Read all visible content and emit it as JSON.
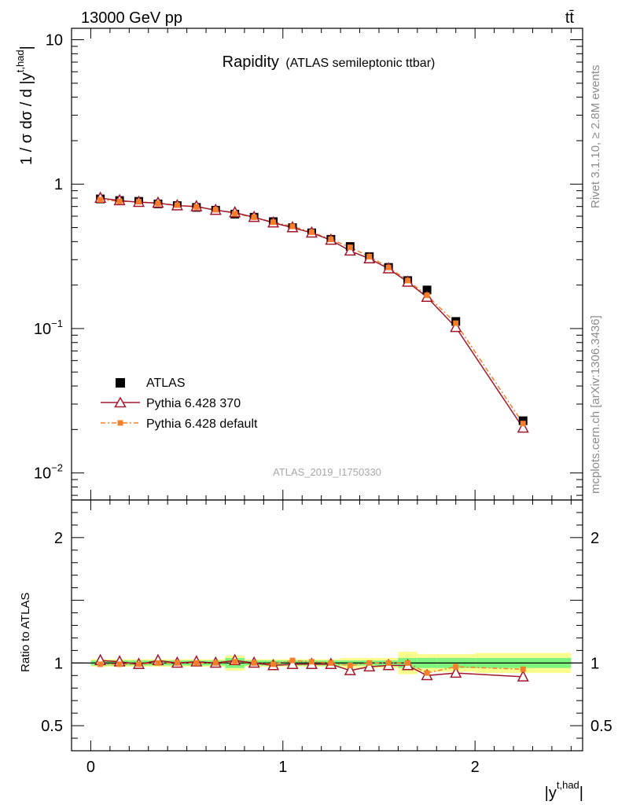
{
  "header": {
    "energy_label": "13000 GeV pp",
    "process_label": "tt̄"
  },
  "side_labels": {
    "rivet": "Rivet 3.1.10, ≥ 2.8M events",
    "mcplots": "mcplots.cern.ch [arXiv:1306.3436]"
  },
  "colors": {
    "atlas": "#000000",
    "pythia370": "#a0182e",
    "pythia_default": "#f57f2a",
    "band_inner": "#7ef47e",
    "band_outer": "#fbfb8e"
  },
  "chart_data": [
    {
      "type": "scatter",
      "title": "Rapidity",
      "subtitle": "(ATLAS semileptonic ttbar)",
      "analysis_label": "ATLAS_2019_I1750330",
      "ylabel": "1 / σ dσ / d |y",
      "ylabel_sup": "t,had",
      "ylabel_end": "|",
      "yscale": "log",
      "ylim": [
        0.0065,
        12
      ],
      "xlim": [
        -0.1,
        2.56
      ],
      "grid": false,
      "legend_position": "bottom-left",
      "x_ticks": [
        0,
        1,
        2
      ],
      "y_ticks": [
        {
          "value": 10,
          "label": "10"
        },
        {
          "value": 1,
          "label": "1"
        },
        {
          "value": 0.1,
          "label": "10",
          "sup": "−1"
        },
        {
          "value": 0.01,
          "label": "10",
          "sup": "−2"
        }
      ],
      "x": [
        0.05,
        0.15,
        0.25,
        0.35,
        0.45,
        0.55,
        0.65,
        0.75,
        0.85,
        0.95,
        1.05,
        1.15,
        1.25,
        1.35,
        1.45,
        1.55,
        1.65,
        1.75,
        1.9,
        2.25
      ],
      "series": [
        {
          "name": "ATLAS",
          "marker": "square",
          "values": [
            0.79,
            0.77,
            0.76,
            0.73,
            0.71,
            0.69,
            0.66,
            0.62,
            0.59,
            0.55,
            0.5,
            0.46,
            0.415,
            0.37,
            0.315,
            0.265,
            0.215,
            0.185,
            0.112,
            0.023
          ]
        },
        {
          "name": "Pythia 6.428 370",
          "marker": "triangle",
          "line": "solid",
          "values": [
            0.8,
            0.77,
            0.75,
            0.74,
            0.71,
            0.7,
            0.66,
            0.635,
            0.59,
            0.54,
            0.5,
            0.46,
            0.41,
            0.345,
            0.305,
            0.26,
            0.21,
            0.165,
            0.102,
            0.0205
          ]
        },
        {
          "name": "Pythia 6.428 default",
          "marker": "small-square",
          "line": "dashdot",
          "values": [
            0.78,
            0.76,
            0.755,
            0.735,
            0.715,
            0.695,
            0.665,
            0.625,
            0.59,
            0.545,
            0.51,
            0.465,
            0.415,
            0.365,
            0.315,
            0.265,
            0.215,
            0.17,
            0.109,
            0.022
          ]
        }
      ]
    },
    {
      "type": "scatter",
      "ylabel": "Ratio to ATLAS",
      "xlabel": "|y",
      "xlabel_sup": "t,had",
      "xlabel_end": "|",
      "ylim": [
        0.3,
        2.3
      ],
      "xlim": [
        -0.1,
        2.56
      ],
      "grid": false,
      "reference_line": 1,
      "x_ticks": [
        0,
        1,
        2
      ],
      "y_ticks": [
        {
          "value": 2,
          "label": "2"
        },
        {
          "value": 1,
          "label": "1"
        },
        {
          "value": 0.5,
          "label": "0.5"
        }
      ],
      "bin_edges": [
        0,
        0.1,
        0.2,
        0.3,
        0.4,
        0.5,
        0.6,
        0.7,
        0.8,
        0.9,
        1.0,
        1.1,
        1.2,
        1.3,
        1.4,
        1.5,
        1.6,
        1.7,
        1.8,
        2.0,
        2.5
      ],
      "band_inner": [
        0.02,
        0.02,
        0.02,
        0.02,
        0.02,
        0.02,
        0.02,
        0.04,
        0.02,
        0.02,
        0.02,
        0.02,
        0.02,
        0.02,
        0.02,
        0.02,
        0.04,
        0.04,
        0.04,
        0.04
      ],
      "band_outer": [
        0.03,
        0.03,
        0.03,
        0.03,
        0.03,
        0.03,
        0.03,
        0.06,
        0.03,
        0.03,
        0.03,
        0.03,
        0.03,
        0.04,
        0.04,
        0.04,
        0.09,
        0.07,
        0.07,
        0.08
      ],
      "x": [
        0.05,
        0.15,
        0.25,
        0.35,
        0.45,
        0.55,
        0.65,
        0.75,
        0.85,
        0.95,
        1.05,
        1.15,
        1.25,
        1.35,
        1.45,
        1.55,
        1.65,
        1.75,
        1.9,
        2.25
      ],
      "series": [
        {
          "name": "Pythia 6.428 370",
          "marker": "triangle",
          "line": "solid",
          "values": [
            1.02,
            1.01,
            0.99,
            1.02,
            1.0,
            1.01,
            1.0,
            1.02,
            1.0,
            0.98,
            0.99,
            0.99,
            0.99,
            0.94,
            0.97,
            0.98,
            0.98,
            0.9,
            0.92,
            0.89
          ]
        },
        {
          "name": "Pythia 6.428 default",
          "marker": "small-square",
          "line": "dashdot",
          "values": [
            0.99,
            0.99,
            0.99,
            1.0,
            1.0,
            1.0,
            1.0,
            1.01,
            1.0,
            0.99,
            1.02,
            1.01,
            1.0,
            0.98,
            1.0,
            1.0,
            1.0,
            0.92,
            0.97,
            0.95
          ]
        }
      ]
    }
  ]
}
